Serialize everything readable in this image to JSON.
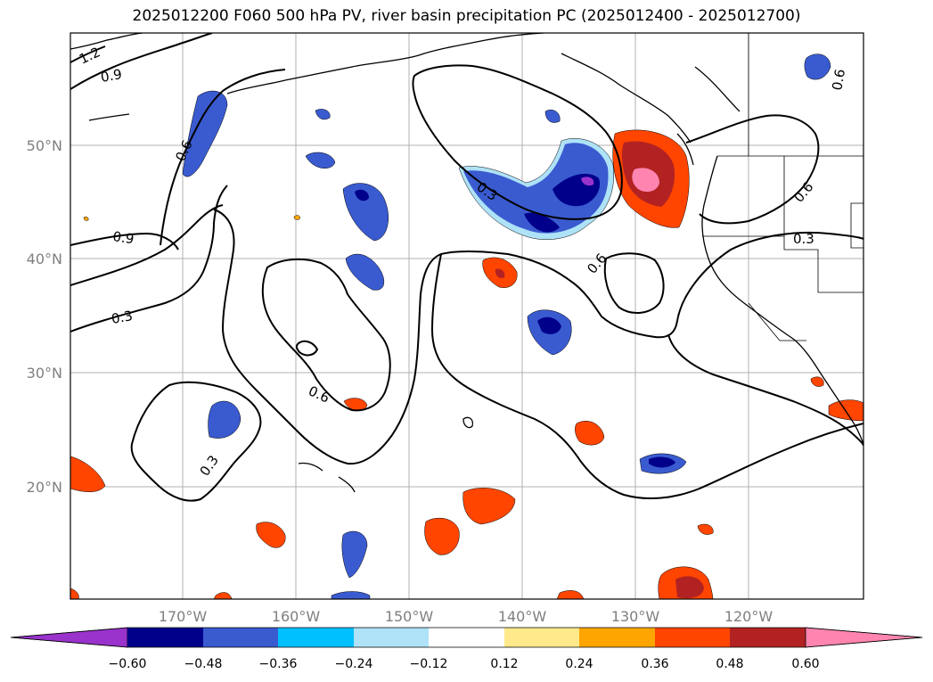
{
  "title": "2025012200 F060 500 hPa PV, river basin precipitation PC (2025012400 - 2025012700)",
  "map": {
    "lat_labels": [
      "50°N",
      "40°N",
      "30°N",
      "20°N"
    ],
    "lon_labels": [
      "170°W",
      "160°W",
      "150°W",
      "140°W",
      "130°W",
      "120°W"
    ],
    "contour_labels": [
      "1.2",
      "0.9",
      "0.6",
      "0.9",
      "0.3",
      "0.3",
      "0.6",
      "0.3",
      "0.6",
      "0.6",
      "0.3",
      "0.6"
    ]
  },
  "colorbar": {
    "ticks": [
      "−0.60",
      "−0.48",
      "−0.36",
      "−0.24",
      "−0.12",
      "0.12",
      "0.24",
      "0.36",
      "0.48",
      "0.60"
    ],
    "colors": [
      "#9933cc",
      "#00008b",
      "#3a5bd0",
      "#00bfff",
      "#aee2f7",
      "#ffffff",
      "#ffe98a",
      "#ffa500",
      "#ff4500",
      "#b22222",
      "#ff85b0"
    ]
  }
}
